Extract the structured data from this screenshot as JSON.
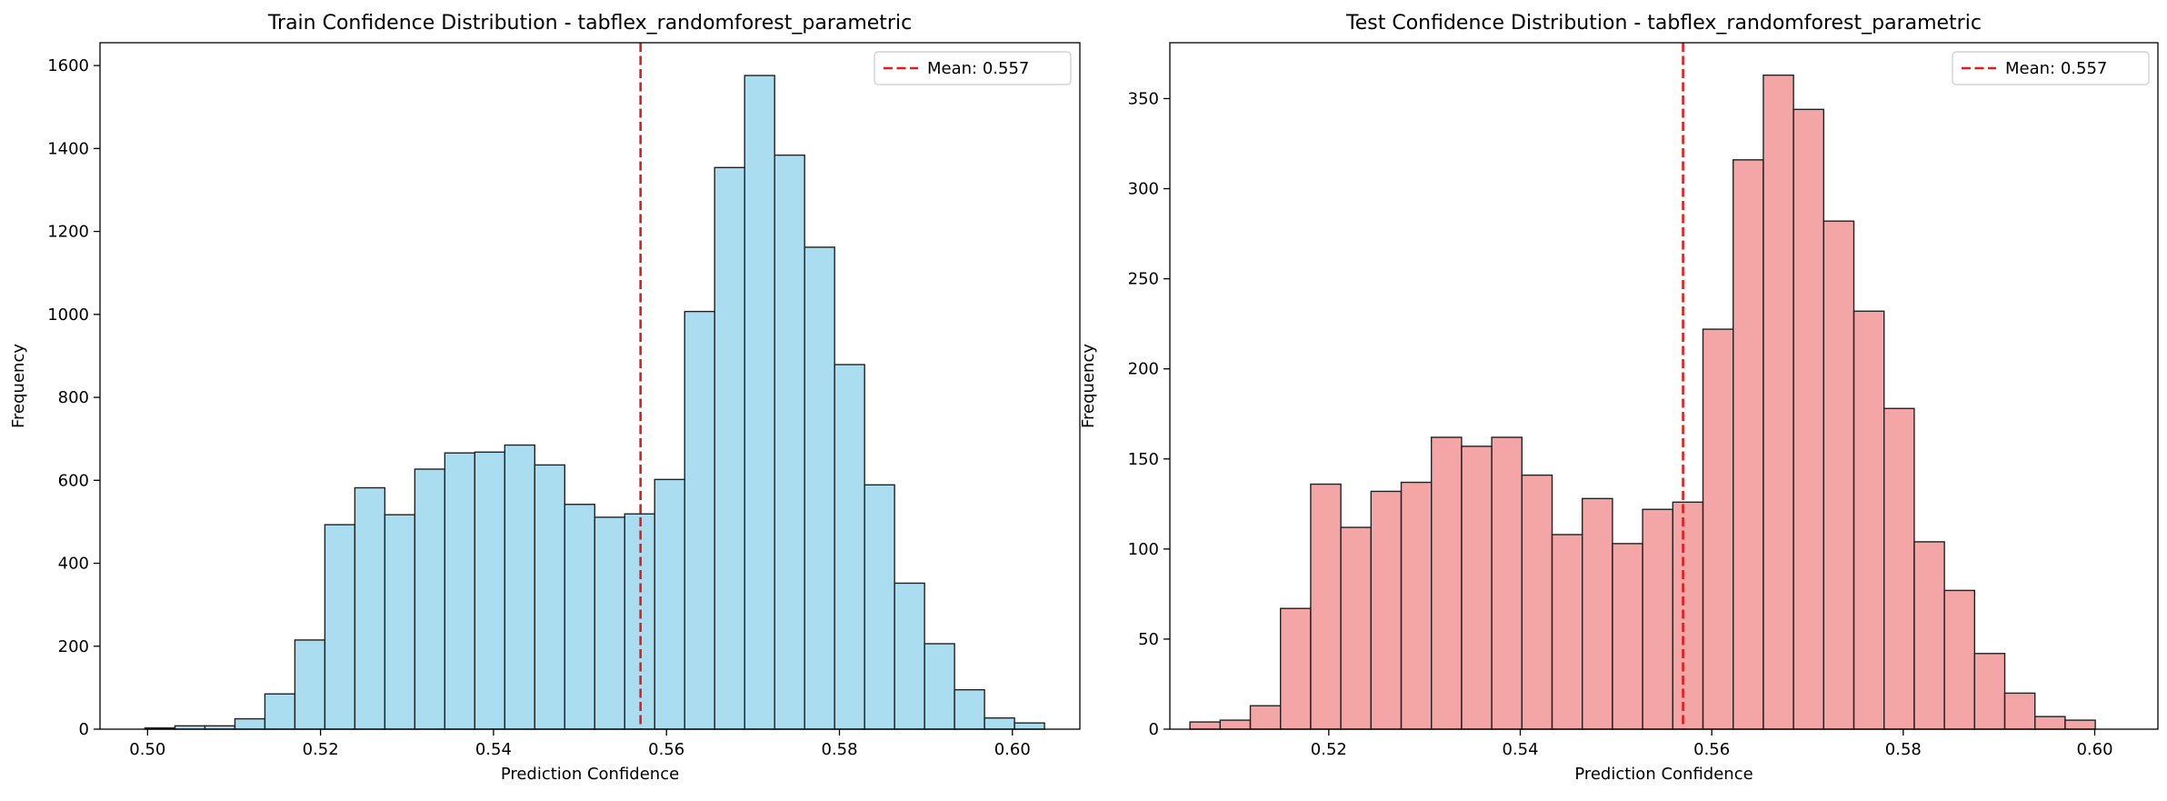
{
  "chart_data": [
    {
      "type": "bar",
      "title": "Train Confidence Distribution - tabflex_randomforest_parametric",
      "xlabel": "Prediction Confidence",
      "ylabel": "Frequency",
      "xlim": [
        0.4945,
        0.6078
      ],
      "ylim": [
        0,
        1655
      ],
      "xticks": [
        "0.50",
        "0.52",
        "0.54",
        "0.56",
        "0.58",
        "0.60"
      ],
      "yticks": [
        "0",
        "200",
        "400",
        "600",
        "800",
        "1000",
        "1200",
        "1400",
        "1600"
      ],
      "bin_start": 0.4997,
      "bin_width": 0.003467,
      "values": [
        3,
        8,
        8,
        25,
        85,
        215,
        493,
        582,
        517,
        627,
        666,
        668,
        685,
        637,
        542,
        511,
        519,
        602,
        1007,
        1354,
        1576,
        1384,
        1162,
        879,
        589,
        352,
        206,
        95,
        27,
        15
      ],
      "bar_color": "#87CEEB",
      "edge_color": "#222222",
      "mean": 0.557,
      "mean_label": "Mean: 0.557",
      "mean_color": "#e41a1c",
      "legend_position": "top-right"
    },
    {
      "type": "bar",
      "title": "Test Confidence Distribution - tabflex_randomforest_parametric",
      "xlabel": "Prediction Confidence",
      "ylabel": "Frequency",
      "xlim": [
        0.5034,
        0.6066
      ],
      "ylim": [
        0,
        381
      ],
      "xticks": [
        "0.52",
        "0.54",
        "0.56",
        "0.58",
        "0.60"
      ],
      "yticks": [
        "0",
        "50",
        "100",
        "150",
        "200",
        "250",
        "300",
        "350"
      ],
      "bin_start": 0.5055,
      "bin_width": 0.003152,
      "values": [
        4,
        5,
        13,
        67,
        136,
        112,
        132,
        137,
        162,
        157,
        162,
        141,
        108,
        128,
        103,
        122,
        126,
        222,
        316,
        363,
        344,
        282,
        232,
        178,
        104,
        77,
        42,
        20,
        7,
        5
      ],
      "bar_color": "#F08080",
      "edge_color": "#222222",
      "mean": 0.557,
      "mean_label": "Mean: 0.557",
      "mean_color": "#e41a1c",
      "legend_position": "top-right"
    }
  ]
}
